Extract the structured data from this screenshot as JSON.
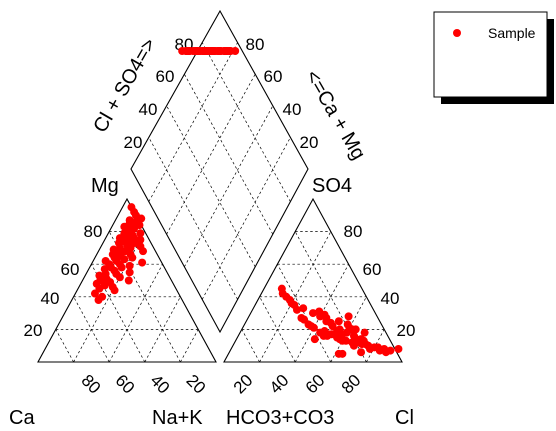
{
  "chart_data": {
    "type": "scatter",
    "subtype": "piper-diagram",
    "legend": {
      "position": "top-right",
      "entries": [
        {
          "label": "Sample",
          "color": "#ff0000",
          "marker": "filled-circle"
        }
      ]
    },
    "corner_labels": {
      "ca": "Ca",
      "nak": "Na+K",
      "hco3": "HCO3+CO3",
      "cl": "Cl",
      "mg": "Mg",
      "so4": "SO4",
      "diamond_left": "Cl + SO4=>",
      "diamond_right": "<=Ca + Mg"
    },
    "tick_labels": {
      "cation_mg_axis": [
        "80",
        "60",
        "40",
        "20"
      ],
      "cation_bottom": [
        "80",
        "60",
        "40",
        "20"
      ],
      "anion_bottom": [
        "20",
        "40",
        "60",
        "80"
      ],
      "anion_so4_axis": [
        "80",
        "60",
        "40",
        "20"
      ],
      "diamond_left": [
        "80",
        "60",
        "40",
        "20"
      ],
      "diamond_right": [
        "80",
        "60",
        "40",
        "20"
      ]
    },
    "grid": true,
    "series": [
      {
        "name": "Sample",
        "color": "#ff0000",
        "cations_mg_pct": [
          95,
          92,
          90,
          88,
          87,
          86,
          85,
          84,
          84,
          83,
          82,
          81,
          80,
          79,
          79,
          78,
          77,
          76,
          76,
          75,
          75,
          74,
          74,
          73,
          73,
          72,
          71,
          70,
          70,
          69,
          68,
          68,
          67,
          66,
          66,
          65,
          64,
          64,
          63,
          62,
          62,
          61,
          60,
          60,
          59,
          58,
          58,
          57,
          56,
          55,
          54,
          54,
          53,
          52,
          51,
          50,
          50,
          49,
          48,
          47,
          46,
          45,
          44,
          42,
          40,
          38
        ],
        "cations_na_pct": [
          5,
          8,
          10,
          14,
          8,
          12,
          9,
          11,
          15,
          7,
          13,
          10,
          12,
          18,
          9,
          14,
          11,
          16,
          8,
          20,
          12,
          15,
          10,
          18,
          9,
          14,
          22,
          11,
          17,
          8,
          15,
          25,
          12,
          19,
          9,
          14,
          21,
          11,
          17,
          7,
          13,
          28,
          10,
          16,
          22,
          12,
          18,
          9,
          15,
          24,
          11,
          17,
          8,
          20,
          13,
          26,
          10,
          16,
          9,
          14,
          19,
          12,
          21,
          11,
          16,
          15
        ],
        "anions_so4_pct": [
          42,
          38,
          45,
          35,
          40,
          33,
          36,
          30,
          28,
          32,
          25,
          27,
          31,
          22,
          26,
          29,
          24,
          20,
          23,
          27,
          18,
          21,
          25,
          19,
          16,
          22,
          28,
          17,
          20,
          14,
          18,
          23,
          15,
          19,
          13,
          16,
          21,
          12,
          17,
          10,
          14,
          20,
          11,
          15,
          18,
          9,
          13,
          16,
          8,
          12,
          17,
          7,
          11,
          14,
          6,
          10,
          13,
          5,
          9,
          12,
          8,
          7,
          10,
          6,
          8,
          5
        ],
        "anions_cl_pct": [
          12,
          18,
          10,
          22,
          15,
          28,
          20,
          35,
          40,
          25,
          45,
          30,
          38,
          50,
          32,
          42,
          48,
          55,
          36,
          44,
          60,
          40,
          52,
          47,
          65,
          38,
          56,
          50,
          62,
          70,
          45,
          58,
          66,
          54,
          72,
          48,
          60,
          68,
          52,
          76,
          58,
          64,
          74,
          56,
          70,
          80,
          62,
          50,
          78,
          66,
          58,
          84,
          72,
          44,
          88,
          76,
          60,
          64,
          82,
          70,
          86,
          90,
          68,
          74,
          94,
          62
        ]
      }
    ]
  }
}
